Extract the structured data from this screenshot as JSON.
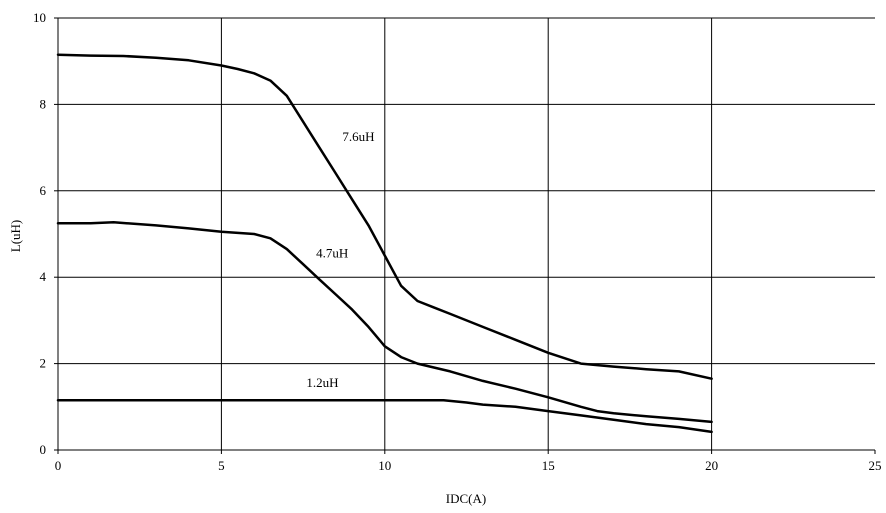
{
  "chart_data": {
    "type": "line",
    "title": "",
    "xlabel": "IDC(A)",
    "ylabel": "L(uH)",
    "xlim": [
      0,
      25
    ],
    "ylim": [
      0,
      10
    ],
    "xticks": [
      0,
      5,
      10,
      15,
      20,
      25
    ],
    "yticks": [
      0,
      2,
      4,
      6,
      8,
      10
    ],
    "grid": "on",
    "line_color": "#000000",
    "series": [
      {
        "name": "7.6uH",
        "x": [
          0,
          1,
          2,
          3,
          4,
          5,
          5.5,
          6,
          6.5,
          7,
          7.5,
          8,
          8.5,
          9,
          9.5,
          10,
          10.5,
          11,
          11.5,
          12,
          13,
          14,
          15,
          16,
          17,
          18,
          19,
          20
        ],
        "y": [
          9.15,
          9.13,
          9.12,
          9.08,
          9.02,
          8.9,
          8.82,
          8.72,
          8.55,
          8.2,
          7.6,
          7.0,
          6.4,
          5.8,
          5.2,
          4.5,
          3.8,
          3.45,
          3.3,
          3.15,
          2.85,
          2.55,
          2.25,
          2.0,
          1.93,
          1.87,
          1.82,
          1.65
        ]
      },
      {
        "name": "4.7uH",
        "x": [
          0,
          1,
          1.7,
          3,
          4,
          5,
          6,
          6.5,
          7,
          7.5,
          8,
          8.5,
          9,
          9.5,
          10,
          10.5,
          11,
          12,
          13,
          14,
          15,
          16,
          16.5,
          17,
          18,
          19,
          20
        ],
        "y": [
          5.25,
          5.25,
          5.27,
          5.2,
          5.13,
          5.05,
          5.0,
          4.9,
          4.65,
          4.3,
          3.95,
          3.6,
          3.25,
          2.85,
          2.4,
          2.15,
          2.0,
          1.82,
          1.6,
          1.42,
          1.22,
          1.0,
          0.9,
          0.85,
          0.78,
          0.72,
          0.65
        ]
      },
      {
        "name": "1.2uH",
        "x": [
          0,
          2,
          4,
          6,
          8,
          10,
          11,
          11.8,
          12.5,
          13,
          14,
          15,
          16,
          17,
          18,
          19,
          20
        ],
        "y": [
          1.15,
          1.15,
          1.15,
          1.15,
          1.15,
          1.15,
          1.15,
          1.15,
          1.1,
          1.05,
          1.0,
          0.9,
          0.8,
          0.7,
          0.6,
          0.53,
          0.42
        ]
      }
    ],
    "annotations": [
      {
        "text": "7.6uH",
        "x": 8.7,
        "y": 7.25
      },
      {
        "text": "4.7uH",
        "x": 7.9,
        "y": 4.55
      },
      {
        "text": "1.2uH",
        "x": 7.6,
        "y": 1.55
      }
    ]
  }
}
